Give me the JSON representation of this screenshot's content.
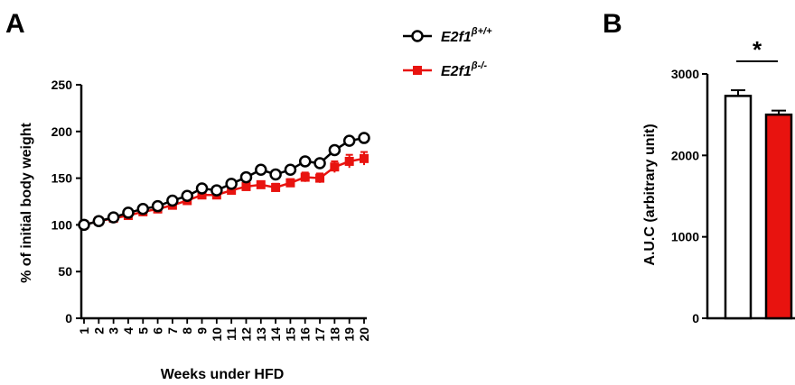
{
  "panel_a_letter": "A",
  "panel_b_letter": "B",
  "legend": {
    "wt_base": "E2f1",
    "wt_sup": "β+/+",
    "ko_base": "E2f1",
    "ko_sup": "β-/-"
  },
  "colors": {
    "wt_line": "#000000",
    "wt_fill": "#ffffff",
    "ko": "#e8130f"
  },
  "chart_data": [
    {
      "type": "line",
      "xlabel": "Weeks under HFD",
      "ylabel": "% of initial body weight",
      "ylim": [
        0,
        250
      ],
      "yticks": [
        0,
        50,
        100,
        150,
        200,
        250
      ],
      "x": [
        1,
        2,
        3,
        4,
        5,
        6,
        7,
        8,
        9,
        10,
        11,
        12,
        13,
        14,
        15,
        16,
        17,
        18,
        19,
        20
      ],
      "grid": false,
      "legend_position": "top-right outside plot",
      "series": [
        {
          "name": "E2f1β+/+",
          "marker": "open-circle",
          "values": [
            100,
            104,
            108,
            113,
            117,
            120,
            126,
            131,
            139,
            137,
            144,
            151,
            159,
            154,
            159,
            168,
            166,
            180,
            190,
            193
          ],
          "errors": [
            1,
            1,
            1,
            1,
            1,
            1,
            2,
            2,
            2,
            3,
            3,
            3,
            4,
            4,
            4,
            4,
            4,
            4,
            4,
            4
          ]
        },
        {
          "name": "E2f1β-/-",
          "marker": "filled-square",
          "values": [
            100,
            104,
            107,
            110,
            114,
            117,
            121,
            126,
            132,
            132,
            137,
            141,
            143,
            140,
            145,
            151,
            150,
            162,
            168,
            171
          ],
          "errors": [
            1,
            1,
            1,
            2,
            2,
            2,
            2,
            2,
            3,
            3,
            3,
            3,
            3,
            4,
            4,
            5,
            5,
            6,
            7,
            7
          ]
        }
      ]
    },
    {
      "type": "bar",
      "ylabel": "A.U.C (arbitrary unit)",
      "ylim": [
        0,
        3000
      ],
      "yticks": [
        0,
        1000,
        2000,
        3000
      ],
      "categories": [
        "E2f1β+/+",
        "E2f1β-/-"
      ],
      "values": [
        2730,
        2500
      ],
      "errors": [
        70,
        50
      ],
      "bar_colors": [
        "#ffffff",
        "#e8130f"
      ],
      "significance": "*"
    }
  ]
}
